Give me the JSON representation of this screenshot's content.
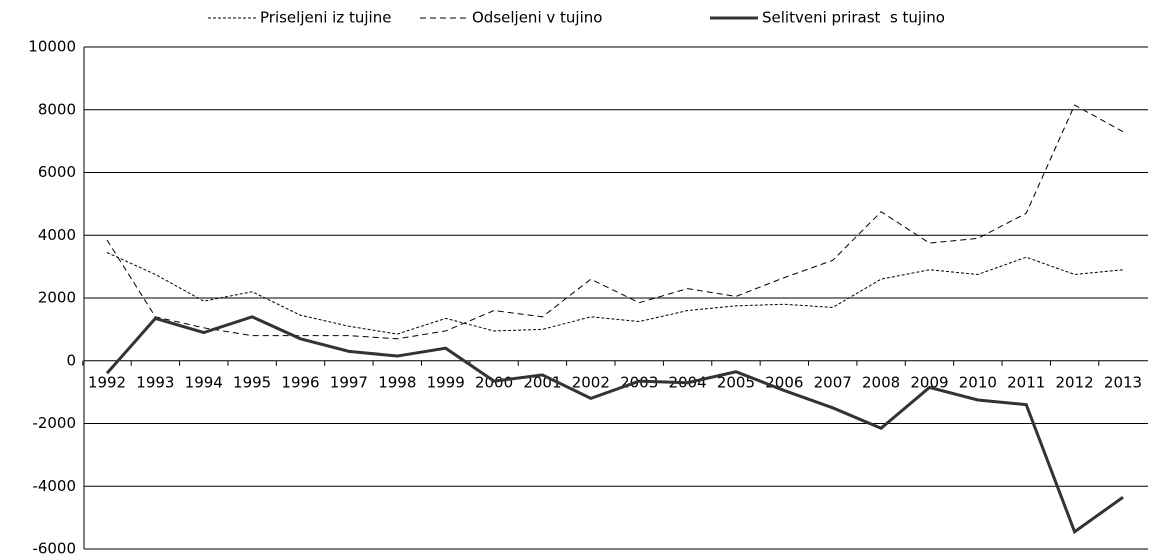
{
  "chart_data": {
    "type": "line",
    "categories": [
      "1992",
      "1993",
      "1994",
      "1995",
      "1996",
      "1997",
      "1998",
      "1999",
      "2000",
      "2001",
      "2002",
      "2003",
      "2004",
      "2005",
      "2006",
      "2007",
      "2008",
      "2009",
      "2010",
      "2011",
      "2012",
      "2013"
    ],
    "series": [
      {
        "name": "Priseljeni iz tujine",
        "color": "#000000",
        "dash": "3,2",
        "width": 1,
        "values": [
          3450,
          2750,
          1900,
          2200,
          1450,
          1100,
          850,
          1350,
          950,
          1000,
          1400,
          1250,
          1600,
          1750,
          1800,
          1700,
          2600,
          2900,
          2750,
          3300,
          2750,
          2900
        ]
      },
      {
        "name": "Odseljeni v tujino",
        "color": "#000000",
        "dash": "6,4",
        "width": 1,
        "values": [
          3850,
          1400,
          1050,
          800,
          800,
          800,
          700,
          950,
          1600,
          1400,
          2600,
          1850,
          2300,
          2050,
          2650,
          3200,
          4750,
          3750,
          3900,
          4700,
          8150,
          7300
        ]
      },
      {
        "name": "Selitveni prirast  s tujino",
        "color": "#333333",
        "dash": "none",
        "width": 3,
        "values": [
          -400,
          1350,
          900,
          1400,
          700,
          300,
          150,
          400,
          -650,
          -450,
          -1200,
          -650,
          -700,
          -350,
          -950,
          -1500,
          -2150,
          -850,
          -1250,
          -1400,
          -5450,
          -4350
        ]
      }
    ],
    "ylim": [
      -6000,
      10000
    ],
    "yticks": [
      -6000,
      -4000,
      -2000,
      0,
      2000,
      4000,
      6000,
      8000,
      10000
    ],
    "grid": true,
    "legend": "top"
  }
}
